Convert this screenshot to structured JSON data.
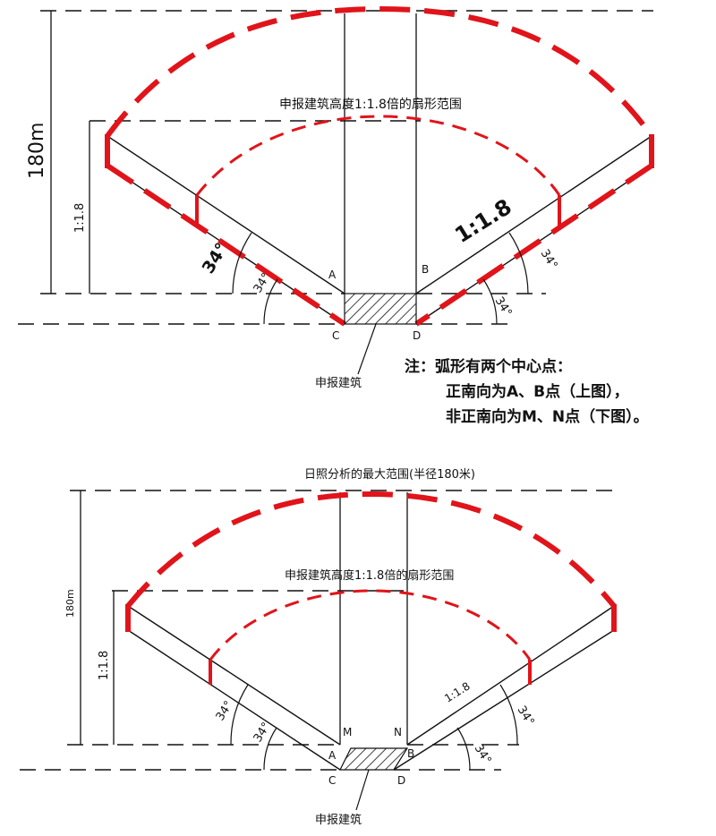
{
  "top": {
    "label_fan": "申报建筑高度1:1.8倍的扇形范围",
    "label_180m": "180m",
    "label_ratio_left": "1:1.8",
    "label_ratio_right": "1:1.8",
    "angle_34_a": "34°",
    "angle_34_b": "34°",
    "angle_34_c": "34°",
    "angle_34_d": "34°",
    "point_a": "A",
    "point_b": "B",
    "point_c": "C",
    "point_d": "D",
    "label_building": "申报建筑"
  },
  "note": {
    "line1": "注：弧形有两个中心点：",
    "line2": "正南向为A、B点（上图），",
    "line3": "非正南向为M、N点（下图）。"
  },
  "bottom": {
    "title": "日照分析的最大范围(半径180米)",
    "label_fan": "申报建筑高度1:1.8倍的扇形范围",
    "label_180m": "180m",
    "label_ratio_left": "1:1.8",
    "label_ratio_right": "1:1.8",
    "angle_34_a": "34°",
    "angle_34_b": "34°",
    "angle_34_c": "34°",
    "angle_34_d": "34°",
    "point_m": "M",
    "point_n": "N",
    "point_a": "A",
    "point_b": "B",
    "point_c": "C",
    "point_d": "D",
    "label_building": "申报建筑"
  },
  "colors": {
    "red": "#e0141a",
    "line": "#111111"
  }
}
